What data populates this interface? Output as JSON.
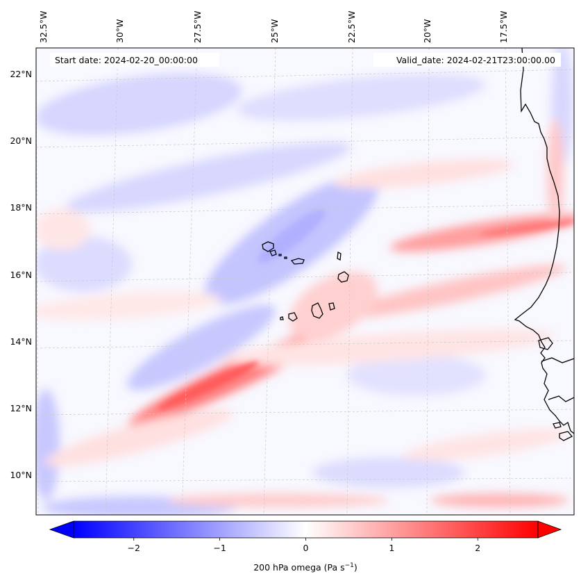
{
  "figure": {
    "start_date": "Start date: 2024-02-20_00:00:00",
    "valid_date": "Valid_date: 2024-02-21T23:00:00.00"
  },
  "map": {
    "lon_labels": [
      {
        "lon": -32.5,
        "label": "32.5°W"
      },
      {
        "lon": -30.0,
        "label": "30°W"
      },
      {
        "lon": -27.5,
        "label": "27.5°W"
      },
      {
        "lon": -25.0,
        "label": "25°W"
      },
      {
        "lon": -22.5,
        "label": "22.5°W"
      },
      {
        "lon": -20.0,
        "label": "20°W"
      },
      {
        "lon": -17.5,
        "label": "17.5°W"
      }
    ],
    "lat_labels": [
      {
        "lat": 22,
        "label": "22°N"
      },
      {
        "lat": 20,
        "label": "20°N"
      },
      {
        "lat": 18,
        "label": "18°N"
      },
      {
        "lat": 16,
        "label": "16°N"
      },
      {
        "lat": 14,
        "label": "14°N"
      },
      {
        "lat": 12,
        "label": "12°N"
      },
      {
        "lat": 10,
        "label": "10°N"
      }
    ],
    "features": [
      {
        "name": "cape-verde-islands",
        "kind": "island-group"
      },
      {
        "name": "west-african-coastline",
        "kind": "coastline"
      }
    ]
  },
  "chart_data": {
    "type": "heatmap",
    "variable": "200 hPa omega",
    "colorbar_label": "200 hPa omega (Pa s",
    "colorbar_label_sup": "−1",
    "colorbar_label_close": ")",
    "colormap": "bwr",
    "vmin": -2.7,
    "vmax": 2.7,
    "extend": "both",
    "ticks": [
      {
        "value": -2,
        "label": "−2"
      },
      {
        "value": -1,
        "label": "−1"
      },
      {
        "value": 0,
        "label": "0"
      },
      {
        "value": 1,
        "label": "1"
      },
      {
        "value": 2,
        "label": "2"
      }
    ],
    "lon_range": [
      -33.4,
      -15.8
    ],
    "lat_range": [
      8.9,
      22.8
    ],
    "features_approx": [
      {
        "desc": "positive band along ~12.5N",
        "sign": "+",
        "peak": 1.2
      },
      {
        "desc": "positive band near 17N west of coast",
        "sign": "+",
        "peak": 1.0
      },
      {
        "desc": "positive streak near 9.5N",
        "sign": "+",
        "peak": 0.8
      },
      {
        "desc": "negative band through Cape Verde NE-SW",
        "sign": "-",
        "peak": -0.6
      },
      {
        "desc": "negative patches along southern/western edge",
        "sign": "-",
        "peak": -0.6
      }
    ]
  }
}
